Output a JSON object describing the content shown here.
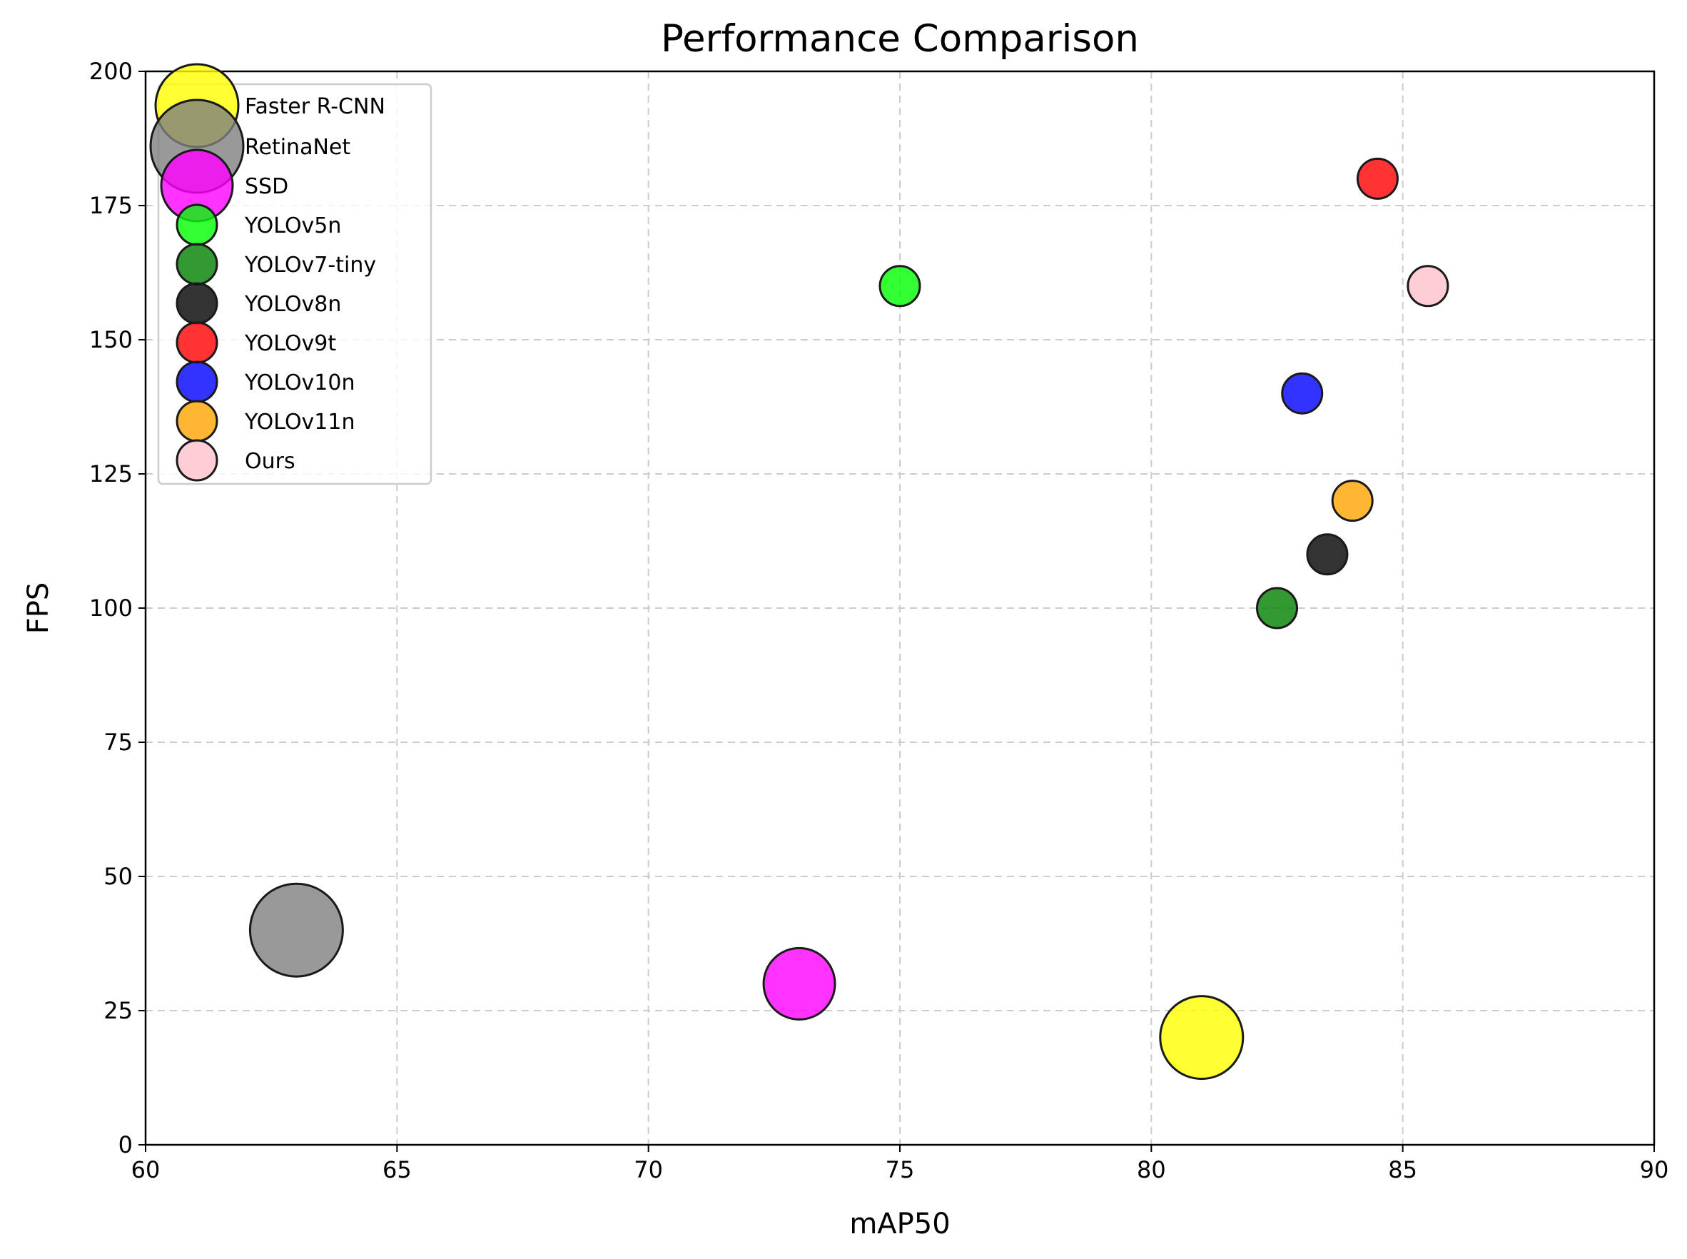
{
  "chart_data": {
    "type": "scatter",
    "title": "Performance Comparison",
    "xlabel": "mAP50",
    "ylabel": "FPS",
    "xlim": [
      60,
      90
    ],
    "ylim": [
      0,
      200
    ],
    "xticks": [
      "60",
      "65",
      "70",
      "75",
      "80",
      "85",
      "90"
    ],
    "yticks": [
      "0",
      "25",
      "50",
      "75",
      "100",
      "125",
      "150",
      "175",
      "200"
    ],
    "grid": true,
    "legend_position": "top-left",
    "marker_alpha": 0.8,
    "series": [
      {
        "name": "Faster R-CNN",
        "x": 81,
        "y": 20,
        "size": "large",
        "color": "#ffff00"
      },
      {
        "name": "RetinaNet",
        "x": 63,
        "y": 40,
        "size": "extra-large",
        "color": "#808080"
      },
      {
        "name": "SSD",
        "x": 73,
        "y": 30,
        "size": "medium-large",
        "color": "#ff00ff"
      },
      {
        "name": "YOLOv5n",
        "x": 75,
        "y": 160,
        "size": "small",
        "color": "#00ff00"
      },
      {
        "name": "YOLOv7-tiny",
        "x": 82.5,
        "y": 100,
        "size": "small",
        "color": "#008000"
      },
      {
        "name": "YOLOv8n",
        "x": 83.5,
        "y": 110,
        "size": "small",
        "color": "#000000"
      },
      {
        "name": "YOLOv9t",
        "x": 84.5,
        "y": 180,
        "size": "small",
        "color": "#ff0000"
      },
      {
        "name": "YOLOv10n",
        "x": 83,
        "y": 140,
        "size": "small",
        "color": "#0000ff"
      },
      {
        "name": "YOLOv11n",
        "x": 84,
        "y": 120,
        "size": "small",
        "color": "#ffa500"
      },
      {
        "name": "Ours",
        "x": 85.5,
        "y": 160,
        "size": "small",
        "color": "#ffc0cb"
      }
    ]
  }
}
